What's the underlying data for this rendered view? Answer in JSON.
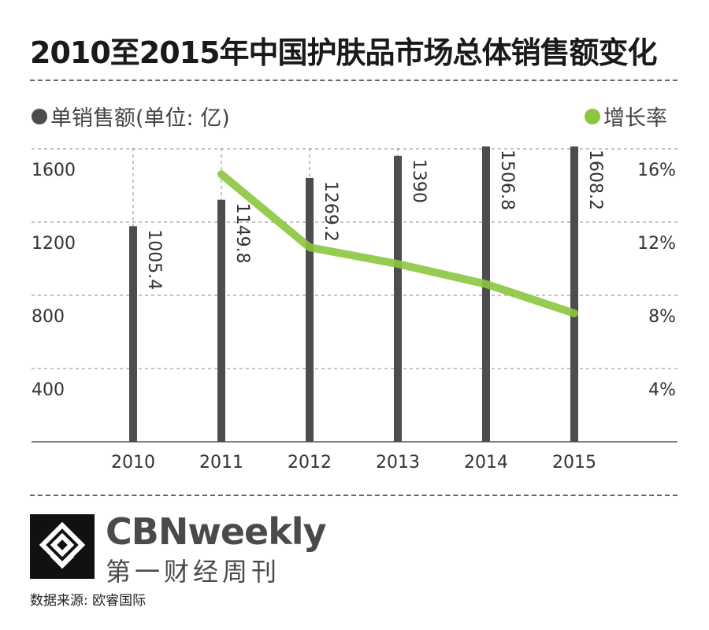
{
  "title": "2010至2015年中国护肤品市场总体销售额变化",
  "legend": {
    "bar_label": "单销售额(单位: 亿)",
    "line_label": "增长率"
  },
  "colors": {
    "bar": "#4d4d4d",
    "line": "#8cc63f",
    "grid": "#888888",
    "text": "#333333"
  },
  "chart_data": {
    "type": "bar+line",
    "categories": [
      "2010",
      "2011",
      "2012",
      "2013",
      "2014",
      "2015"
    ],
    "series": [
      {
        "name": "单销售额(单位: 亿)",
        "type": "bar",
        "axis": "left",
        "values": [
          1005.4,
          1149.8,
          1269.2,
          1390,
          1506.8,
          1608.2
        ],
        "labels": [
          "1005.4",
          "1149.8",
          "1269.2",
          "1390",
          "1506.8",
          "1608.2"
        ]
      },
      {
        "name": "增长率",
        "type": "line",
        "axis": "right",
        "x": [
          "2011",
          "2012",
          "2013",
          "2014",
          "2015"
        ],
        "values": [
          14.4,
          10.4,
          9.5,
          8.4,
          6.8
        ]
      }
    ],
    "left_axis": {
      "ticks": [
        "400",
        "800",
        "1200",
        "1600"
      ],
      "ylim": [
        0,
        1600
      ]
    },
    "right_axis": {
      "ticks": [
        "4%",
        "8%",
        "12%",
        "16%"
      ],
      "ylim": [
        0,
        16
      ]
    },
    "grid": true
  },
  "brand": {
    "name": "CBNweekly",
    "name_cn": "第一财经周刊"
  },
  "source": "数据来源: 欧睿国际"
}
